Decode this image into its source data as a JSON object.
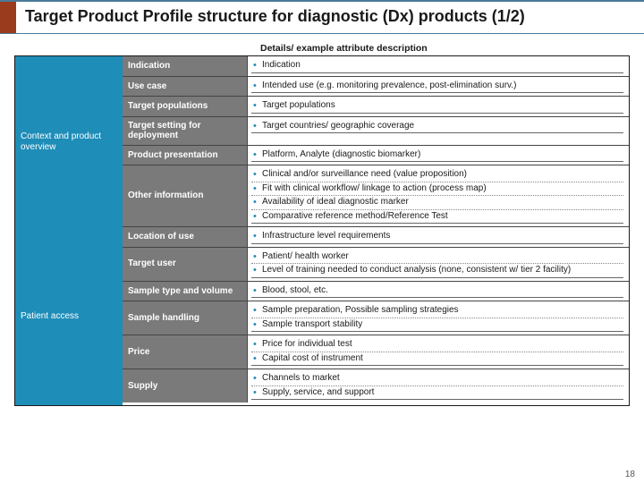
{
  "title": "Target Product Profile structure for diagnostic (Dx) products (1/2)",
  "details_header": "Details/ example attribute description",
  "accent_color": "#9b3b1e",
  "section_color": "#1e8db8",
  "attr_color": "#7a7a7a",
  "page_number": "18",
  "sections": [
    {
      "label": "Context and product overview",
      "rows": [
        {
          "attr": "Indication",
          "desc": [
            "Indication"
          ]
        },
        {
          "attr": "Use case",
          "desc": [
            "Intended use (e.g. monitoring prevalence, post-elimination surv.)"
          ]
        },
        {
          "attr": "Target populations",
          "desc": [
            "Target populations"
          ]
        },
        {
          "attr": "Target setting for deployment",
          "desc": [
            "Target countries/ geographic coverage"
          ]
        },
        {
          "attr": "Product presentation",
          "desc": [
            "Platform, Analyte (diagnostic biomarker)"
          ]
        },
        {
          "attr": "Other information",
          "desc": [
            "Clinical and/or surveillance need (value proposition)",
            "Fit with clinical workflow/ linkage to action (process map)",
            "Availability of ideal diagnostic marker",
            "Comparative reference method/Reference Test"
          ]
        }
      ]
    },
    {
      "label": "Patient access",
      "rows": [
        {
          "attr": "Location of use",
          "desc": [
            "Infrastructure level requirements"
          ]
        },
        {
          "attr": "Target user",
          "desc": [
            "Patient/ health worker",
            "Level of training needed to conduct analysis (none, consistent w/ tier 2 facility)"
          ]
        },
        {
          "attr": "Sample type and volume",
          "desc": [
            "Blood, stool, etc."
          ]
        },
        {
          "attr": "Sample handling",
          "desc": [
            "Sample preparation, Possible sampling strategies",
            "Sample transport stability"
          ]
        },
        {
          "attr": "Price",
          "desc": [
            "Price for individual test",
            "Capital cost of instrument"
          ]
        },
        {
          "attr": "Supply",
          "desc": [
            "Channels to market",
            "Supply, service, and support"
          ]
        }
      ]
    }
  ]
}
